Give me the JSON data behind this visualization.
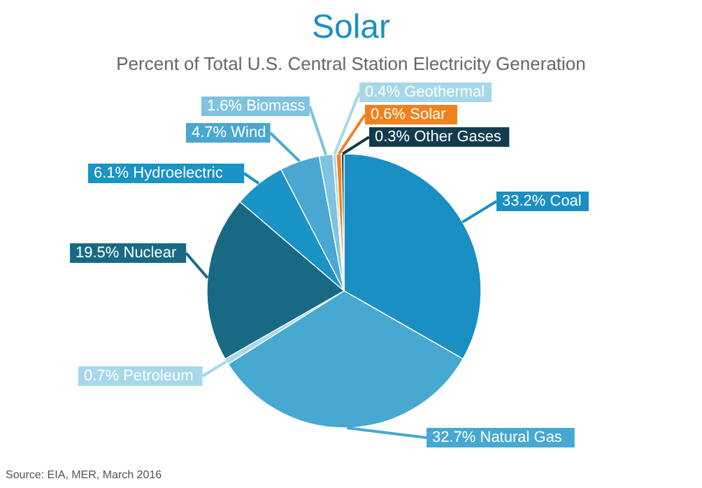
{
  "chart_data": {
    "type": "pie",
    "title": "Solar",
    "subtitle": "Percent of Total U.S. Central Station Electricity Generation",
    "categories": [
      "33.2% Coal",
      "32.7% Natural Gas",
      "0.7% Petroleum",
      "19.5% Nuclear",
      "6.1% Hydroelectric",
      "4.7% Wind",
      "1.6% Biomass",
      "0.4% Geothermal",
      "0.6% Solar",
      "0.3% Other Gases"
    ],
    "values": [
      33.2,
      32.7,
      0.7,
      19.5,
      6.1,
      4.7,
      1.6,
      0.4,
      0.6,
      0.3
    ],
    "colors": [
      "#1a8fc4",
      "#47a8d1",
      "#a6d8ea",
      "#186a84",
      "#1a93c6",
      "#49a7d1",
      "#7fc3e0",
      "#a6d8ea",
      "#f0821e",
      "#123c4d"
    ],
    "annotations": [
      "Source: EIA, MER, March 2016"
    ]
  }
}
